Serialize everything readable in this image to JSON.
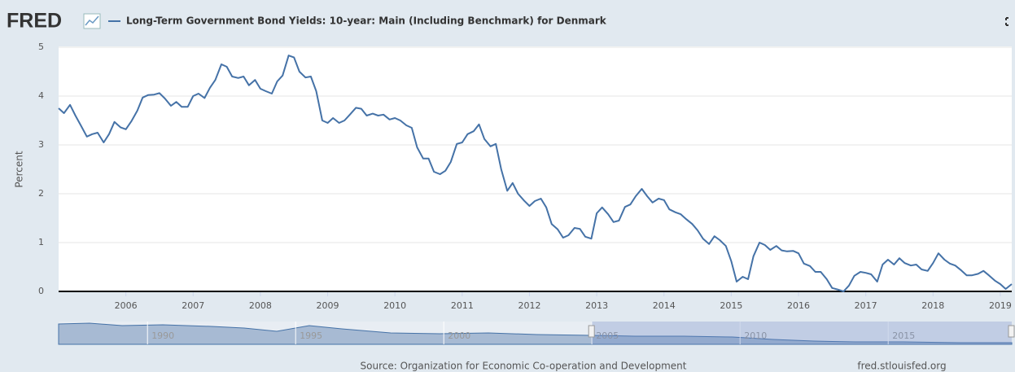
{
  "logo": "FRED",
  "chart_data": {
    "type": "line",
    "ylabel": "Percent",
    "source": "Source: Organization for Economic Co-operation and Development",
    "site": "fred.stlouisfed.org",
    "x": [
      2005.0,
      2005.08,
      2005.17,
      2005.25,
      2005.33,
      2005.42,
      2005.5,
      2005.58,
      2005.67,
      2005.75,
      2005.83,
      2005.92,
      2006.0,
      2006.08,
      2006.17,
      2006.25,
      2006.33,
      2006.42,
      2006.5,
      2006.58,
      2006.67,
      2006.75,
      2006.83,
      2006.92,
      2007.0,
      2007.08,
      2007.17,
      2007.25,
      2007.33,
      2007.42,
      2007.5,
      2007.58,
      2007.67,
      2007.75,
      2007.83,
      2007.92,
      2008.0,
      2008.08,
      2008.17,
      2008.25,
      2008.33,
      2008.42,
      2008.5,
      2008.58,
      2008.67,
      2008.75,
      2008.83,
      2008.92,
      2009.0,
      2009.08,
      2009.17,
      2009.25,
      2009.33,
      2009.42,
      2009.5,
      2009.58,
      2009.67,
      2009.75,
      2009.83,
      2009.92,
      2010.0,
      2010.08,
      2010.17,
      2010.25,
      2010.33,
      2010.42,
      2010.5,
      2010.58,
      2010.67,
      2010.75,
      2010.83,
      2010.92,
      2011.0,
      2011.08,
      2011.17,
      2011.25,
      2011.33,
      2011.42,
      2011.5,
      2011.58,
      2011.67,
      2011.75,
      2011.83,
      2011.92,
      2012.0,
      2012.08,
      2012.17,
      2012.25,
      2012.33,
      2012.42,
      2012.5,
      2012.58,
      2012.67,
      2012.75,
      2012.83,
      2012.92,
      2013.0,
      2013.08,
      2013.17,
      2013.25,
      2013.33,
      2013.42,
      2013.5,
      2013.58,
      2013.67,
      2013.75,
      2013.83,
      2013.92,
      2014.0,
      2014.08,
      2014.17,
      2014.25,
      2014.33,
      2014.42,
      2014.5,
      2014.58,
      2014.67,
      2014.75,
      2014.83,
      2014.92,
      2015.0,
      2015.08,
      2015.17,
      2015.25,
      2015.33,
      2015.42,
      2015.5,
      2015.58,
      2015.67,
      2015.75,
      2015.83,
      2015.92,
      2016.0,
      2016.08,
      2016.17,
      2016.25,
      2016.33,
      2016.42,
      2016.5,
      2016.58,
      2016.67,
      2016.75,
      2016.83,
      2016.92,
      2017.0,
      2017.08,
      2017.17,
      2017.25,
      2017.33,
      2017.42,
      2017.5,
      2017.58,
      2017.67,
      2017.75,
      2017.83,
      2017.92,
      2018.0,
      2018.08,
      2018.17,
      2018.25,
      2018.33,
      2018.42,
      2018.5,
      2018.58,
      2018.67,
      2018.75,
      2018.83,
      2018.92,
      2019.0,
      2019.08,
      2019.17
    ],
    "series": [
      {
        "name": "Long-Term Government Bond Yields: 10-year: Main (Including Benchmark) for Denmark",
        "color": "#4572a7",
        "values": [
          3.75,
          3.65,
          3.82,
          3.6,
          3.4,
          3.17,
          3.22,
          3.25,
          3.05,
          3.22,
          3.47,
          3.36,
          3.32,
          3.48,
          3.7,
          3.97,
          4.02,
          4.03,
          4.06,
          3.95,
          3.8,
          3.88,
          3.78,
          3.78,
          4.0,
          4.05,
          3.96,
          4.17,
          4.33,
          4.65,
          4.6,
          4.4,
          4.37,
          4.4,
          4.22,
          4.33,
          4.15,
          4.1,
          4.05,
          4.3,
          4.42,
          4.83,
          4.79,
          4.5,
          4.38,
          4.4,
          4.1,
          3.5,
          3.45,
          3.55,
          3.45,
          3.5,
          3.62,
          3.76,
          3.74,
          3.6,
          3.64,
          3.6,
          3.62,
          3.52,
          3.55,
          3.5,
          3.4,
          3.35,
          2.95,
          2.72,
          2.72,
          2.45,
          2.4,
          2.47,
          2.65,
          3.02,
          3.05,
          3.22,
          3.28,
          3.42,
          3.12,
          2.97,
          3.02,
          2.5,
          2.06,
          2.22,
          2.0,
          1.86,
          1.75,
          1.85,
          1.9,
          1.72,
          1.38,
          1.27,
          1.1,
          1.15,
          1.3,
          1.28,
          1.12,
          1.08,
          1.6,
          1.72,
          1.58,
          1.42,
          1.45,
          1.73,
          1.78,
          1.95,
          2.1,
          1.95,
          1.82,
          1.9,
          1.87,
          1.68,
          1.62,
          1.58,
          1.48,
          1.38,
          1.25,
          1.08,
          0.97,
          1.13,
          1.05,
          0.93,
          0.62,
          0.2,
          0.3,
          0.25,
          0.72,
          1.0,
          0.95,
          0.85,
          0.93,
          0.84,
          0.82,
          0.83,
          0.78,
          0.57,
          0.52,
          0.4,
          0.4,
          0.25,
          0.07,
          0.04,
          0.0,
          0.12,
          0.32,
          0.4,
          0.38,
          0.35,
          0.2,
          0.55,
          0.65,
          0.55,
          0.68,
          0.58,
          0.53,
          0.55,
          0.45,
          0.42,
          0.58,
          0.78,
          0.65,
          0.57,
          0.53,
          0.43,
          0.33,
          0.33,
          0.36,
          0.42,
          0.33,
          0.22,
          0.15,
          0.05,
          0.15
        ]
      }
    ],
    "xlim": [
      2005.0,
      2019.17
    ],
    "xticks": [
      2006,
      2007,
      2008,
      2009,
      2010,
      2011,
      2012,
      2013,
      2014,
      2015,
      2016,
      2017,
      2018,
      2019
    ],
    "ylim": [
      0,
      5
    ],
    "yticks": [
      0,
      1,
      2,
      3,
      4,
      5
    ],
    "grid": true,
    "navigator": {
      "xlim": [
        1987,
        2019.17
      ],
      "xticks": [
        1990,
        1995,
        2000,
        2005,
        2010,
        2015
      ]
    }
  }
}
